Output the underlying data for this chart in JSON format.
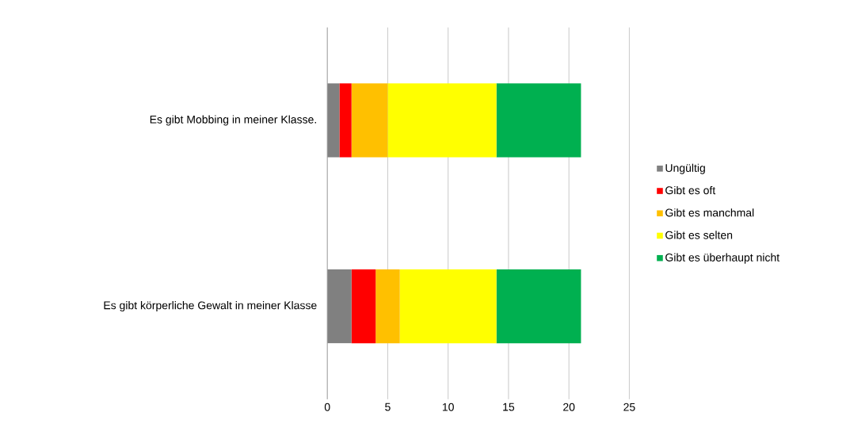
{
  "chart_data": {
    "type": "bar",
    "orientation": "horizontal",
    "stacked": true,
    "categories": [
      "Es gibt Mobbing in meiner Klasse.",
      "Es gibt körperliche Gewalt in meiner Klasse"
    ],
    "series": [
      {
        "name": "Ungültig",
        "color": "#808080",
        "values": [
          1,
          2
        ]
      },
      {
        "name": "Gibt es oft",
        "color": "#ff0000",
        "values": [
          1,
          2
        ]
      },
      {
        "name": "Gibt es manchmal",
        "color": "#ffc000",
        "values": [
          3,
          2
        ]
      },
      {
        "name": "Gibt es selten",
        "color": "#ffff00",
        "values": [
          9,
          8
        ]
      },
      {
        "name": "Gibt es überhaupt nicht",
        "color": "#00b050",
        "values": [
          7,
          7
        ]
      }
    ],
    "xlim": [
      0,
      25
    ],
    "xticks": [
      0,
      5,
      10,
      15,
      20,
      25
    ],
    "grid": "x",
    "legend": "right"
  }
}
